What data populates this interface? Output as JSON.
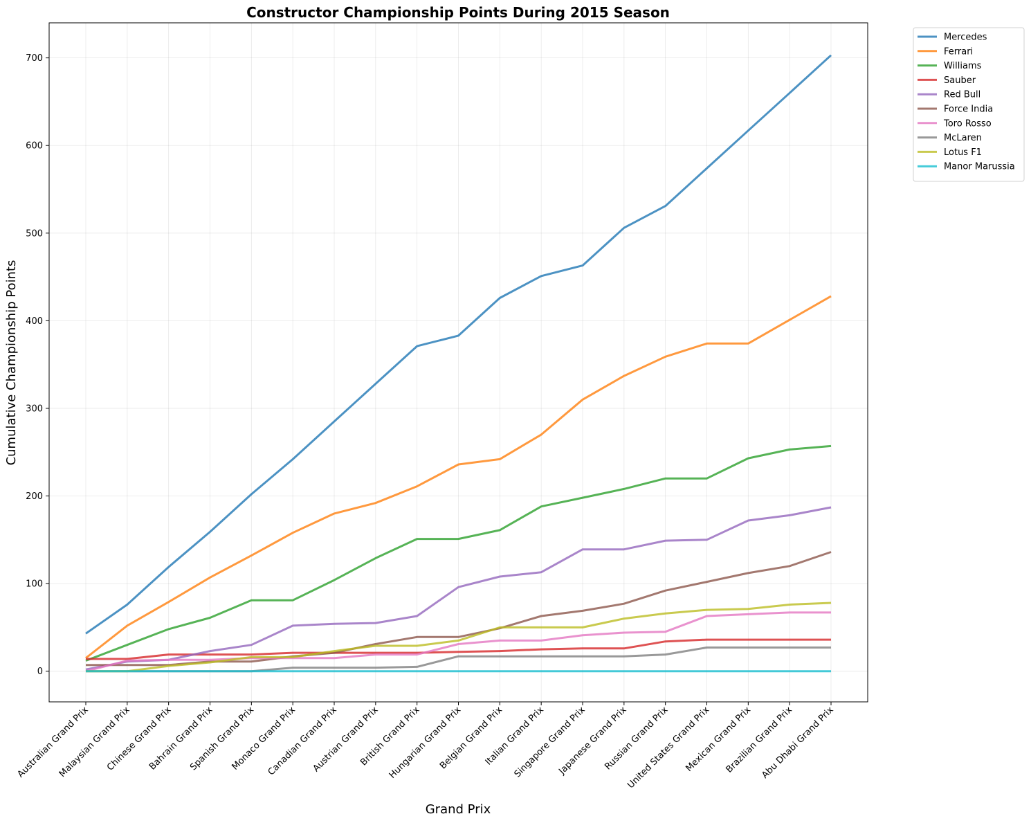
{
  "chart_data": {
    "type": "line",
    "title": "Constructor Championship Points During 2015 Season",
    "xlabel": "Grand Prix",
    "ylabel": "Cumulative Championship Points",
    "ylim": [
      -35,
      740
    ],
    "yticks": [
      0,
      100,
      200,
      300,
      400,
      500,
      600,
      700
    ],
    "grid": true,
    "legend_position": "outside-top-right",
    "categories": [
      "Australian Grand Prix",
      "Malaysian Grand Prix",
      "Chinese Grand Prix",
      "Bahrain Grand Prix",
      "Spanish Grand Prix",
      "Monaco Grand Prix",
      "Canadian Grand Prix",
      "Austrian Grand Prix",
      "British Grand Prix",
      "Hungarian Grand Prix",
      "Belgian Grand Prix",
      "Italian Grand Prix",
      "Singapore Grand Prix",
      "Japanese Grand Prix",
      "Russian Grand Prix",
      "United States Grand Prix",
      "Mexican Grand Prix",
      "Brazilian Grand Prix",
      "Abu Dhabi Grand Prix"
    ],
    "series": [
      {
        "name": "Mercedes",
        "color": "#1f77b4",
        "values": [
          43,
          76,
          119,
          159,
          202,
          242,
          285,
          328,
          371,
          383,
          426,
          451,
          463,
          506,
          531,
          574,
          617,
          660,
          703
        ]
      },
      {
        "name": "Ferrari",
        "color": "#ff7f0e",
        "values": [
          15,
          52,
          79,
          107,
          132,
          158,
          180,
          192,
          211,
          236,
          242,
          270,
          310,
          337,
          359,
          374,
          374,
          401,
          428
        ]
      },
      {
        "name": "Williams",
        "color": "#2ca02c",
        "values": [
          12,
          30,
          48,
          61,
          81,
          81,
          104,
          129,
          151,
          151,
          161,
          188,
          198,
          208,
          220,
          220,
          243,
          253,
          257
        ]
      },
      {
        "name": "Sauber",
        "color": "#d62728",
        "values": [
          14,
          14,
          19,
          19,
          19,
          21,
          21,
          21,
          21,
          22,
          23,
          25,
          26,
          26,
          34,
          36,
          36,
          36,
          36
        ]
      },
      {
        "name": "Red Bull",
        "color": "#9467bd",
        "values": [
          2,
          11,
          13,
          23,
          30,
          52,
          54,
          55,
          63,
          96,
          108,
          113,
          139,
          139,
          149,
          150,
          172,
          178,
          187
        ]
      },
      {
        "name": "Force India",
        "color": "#8c564b",
        "values": [
          7,
          7,
          7,
          11,
          11,
          17,
          21,
          31,
          39,
          39,
          49,
          63,
          69,
          77,
          92,
          102,
          112,
          120,
          136
        ]
      },
      {
        "name": "Toro Rosso",
        "color": "#e377c2",
        "values": [
          0,
          12,
          13,
          13,
          15,
          15,
          15,
          19,
          19,
          31,
          35,
          35,
          41,
          44,
          45,
          63,
          65,
          67,
          67
        ]
      },
      {
        "name": "McLaren",
        "color": "#7f7f7f",
        "values": [
          0,
          0,
          0,
          0,
          0,
          4,
          4,
          4,
          5,
          17,
          17,
          17,
          17,
          17,
          19,
          27,
          27,
          27,
          27
        ]
      },
      {
        "name": "Lotus F1",
        "color": "#bcbd22",
        "values": [
          0,
          0,
          6,
          10,
          16,
          16,
          23,
          29,
          29,
          35,
          50,
          50,
          50,
          60,
          66,
          70,
          71,
          76,
          78
        ]
      },
      {
        "name": "Manor Marussia",
        "color": "#17becf",
        "values": [
          0,
          0,
          0,
          0,
          0,
          0,
          0,
          0,
          0,
          0,
          0,
          0,
          0,
          0,
          0,
          0,
          0,
          0,
          0
        ]
      }
    ]
  }
}
